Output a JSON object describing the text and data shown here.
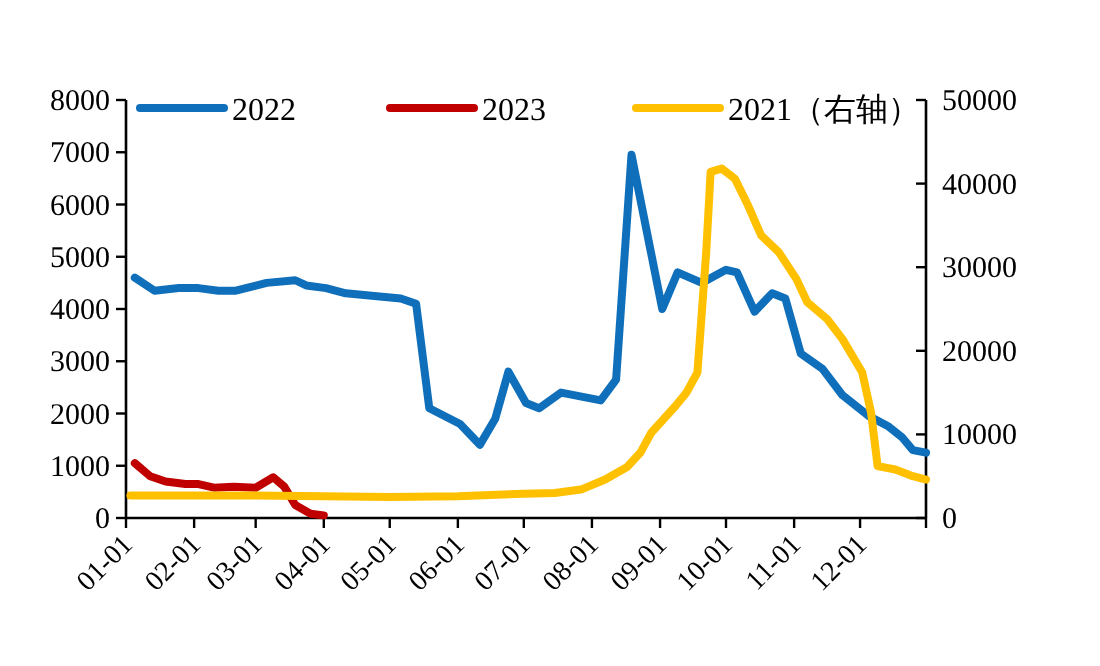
{
  "chart_data": {
    "type": "line",
    "legend": "top",
    "marker": "none",
    "line_style": "solid",
    "grid": false,
    "xlim": [
      "--01-01",
      "--12-31"
    ],
    "xticks": [
      {
        "value": "--01-01",
        "label": "01-01"
      },
      {
        "value": "--02-01",
        "label": "02-01"
      },
      {
        "value": "--03-01",
        "label": "03-01"
      },
      {
        "value": "--04-01",
        "label": "04-01"
      },
      {
        "value": "--05-01",
        "label": "05-01"
      },
      {
        "value": "--06-01",
        "label": "06-01"
      },
      {
        "value": "--07-01",
        "label": "07-01"
      },
      {
        "value": "--08-01",
        "label": "08-01"
      },
      {
        "value": "--09-01",
        "label": "09-01"
      },
      {
        "value": "--10-01",
        "label": "10-01"
      },
      {
        "value": "--11-01",
        "label": "11-01"
      },
      {
        "value": "--12-01",
        "label": "12-01"
      },
      {
        "value": "--12-31",
        "label": null
      }
    ],
    "ylim": [
      0,
      8000
    ],
    "yticks": [
      0,
      1000,
      2000,
      3000,
      4000,
      5000,
      6000,
      7000,
      8000
    ],
    "y2lim": [
      0,
      50000
    ],
    "y2ticks": [
      0,
      10000,
      20000,
      30000,
      40000,
      50000
    ],
    "series": [
      {
        "name": "2022",
        "color": "#0f6fba",
        "x": [
          "--01-05",
          "--01-14",
          "--01-25",
          "--02-03",
          "--02-12",
          "--02-20",
          "--03-06",
          "--03-19",
          "--03-24",
          "--04-02",
          "--04-11",
          "--04-24",
          "--05-06",
          "--05-13",
          "--05-19",
          "--06-02",
          "--06-11",
          "--06-18",
          "--06-24",
          "--07-02",
          "--07-08",
          "--07-18",
          "--08-05",
          "--08-12",
          "--08-19",
          "--09-02",
          "--09-09",
          "--09-20",
          "--10-01",
          "--10-06",
          "--10-14",
          "--10-22",
          "--10-28",
          "--11-04",
          "--11-14",
          "--11-23",
          "--12-05",
          "--12-14",
          "--12-20",
          "--12-25",
          "--12-31"
        ],
        "values": [
          4600,
          4350,
          4400,
          4400,
          4350,
          4350,
          4500,
          4550,
          4450,
          4400,
          4300,
          4250,
          4200,
          4100,
          2100,
          1800,
          1400,
          1900,
          2800,
          2200,
          2100,
          2400,
          2250,
          2650,
          6950,
          4000,
          4700,
          4500,
          4750,
          4700,
          3950,
          4300,
          4200,
          3150,
          2850,
          2350,
          1950,
          1750,
          1550,
          1300,
          1250
        ]
      },
      {
        "name": "2023",
        "color": "#c00000",
        "x": [
          "--01-05",
          "--01-12",
          "--01-19",
          "--01-28",
          "--02-03",
          "--02-10",
          "--02-19",
          "--03-01",
          "--03-09",
          "--03-14",
          "--03-19",
          "--03-26",
          "--04-01"
        ],
        "values": [
          1050,
          800,
          700,
          650,
          650,
          580,
          600,
          580,
          780,
          600,
          250,
          80,
          50
        ]
      },
      {
        "name": "2021（右轴）",
        "color": "#ffc000",
        "axis": "y2",
        "x": [
          "--01-03",
          "--03-01",
          "--05-01",
          "--06-01",
          "--07-01",
          "--07-15",
          "--07-27",
          "--08-07",
          "--08-17",
          "--08-23",
          "--08-28",
          "--09-08",
          "--09-13",
          "--09-18",
          "--09-22",
          "--09-24",
          "--09-29",
          "--10-05",
          "--10-11",
          "--10-17",
          "--10-25",
          "--11-02",
          "--11-07",
          "--11-16",
          "--11-23",
          "--12-02",
          "--12-06",
          "--12-09",
          "--12-17",
          "--12-25",
          "--12-31"
        ],
        "values": [
          2700,
          2700,
          2500,
          2600,
          2900,
          3000,
          3400,
          4600,
          6100,
          7800,
          10200,
          13400,
          15000,
          17400,
          31800,
          41400,
          41800,
          40600,
          37400,
          33800,
          31800,
          28600,
          25800,
          23800,
          21400,
          17400,
          12600,
          6200,
          5800,
          5000,
          4600
        ]
      }
    ]
  }
}
